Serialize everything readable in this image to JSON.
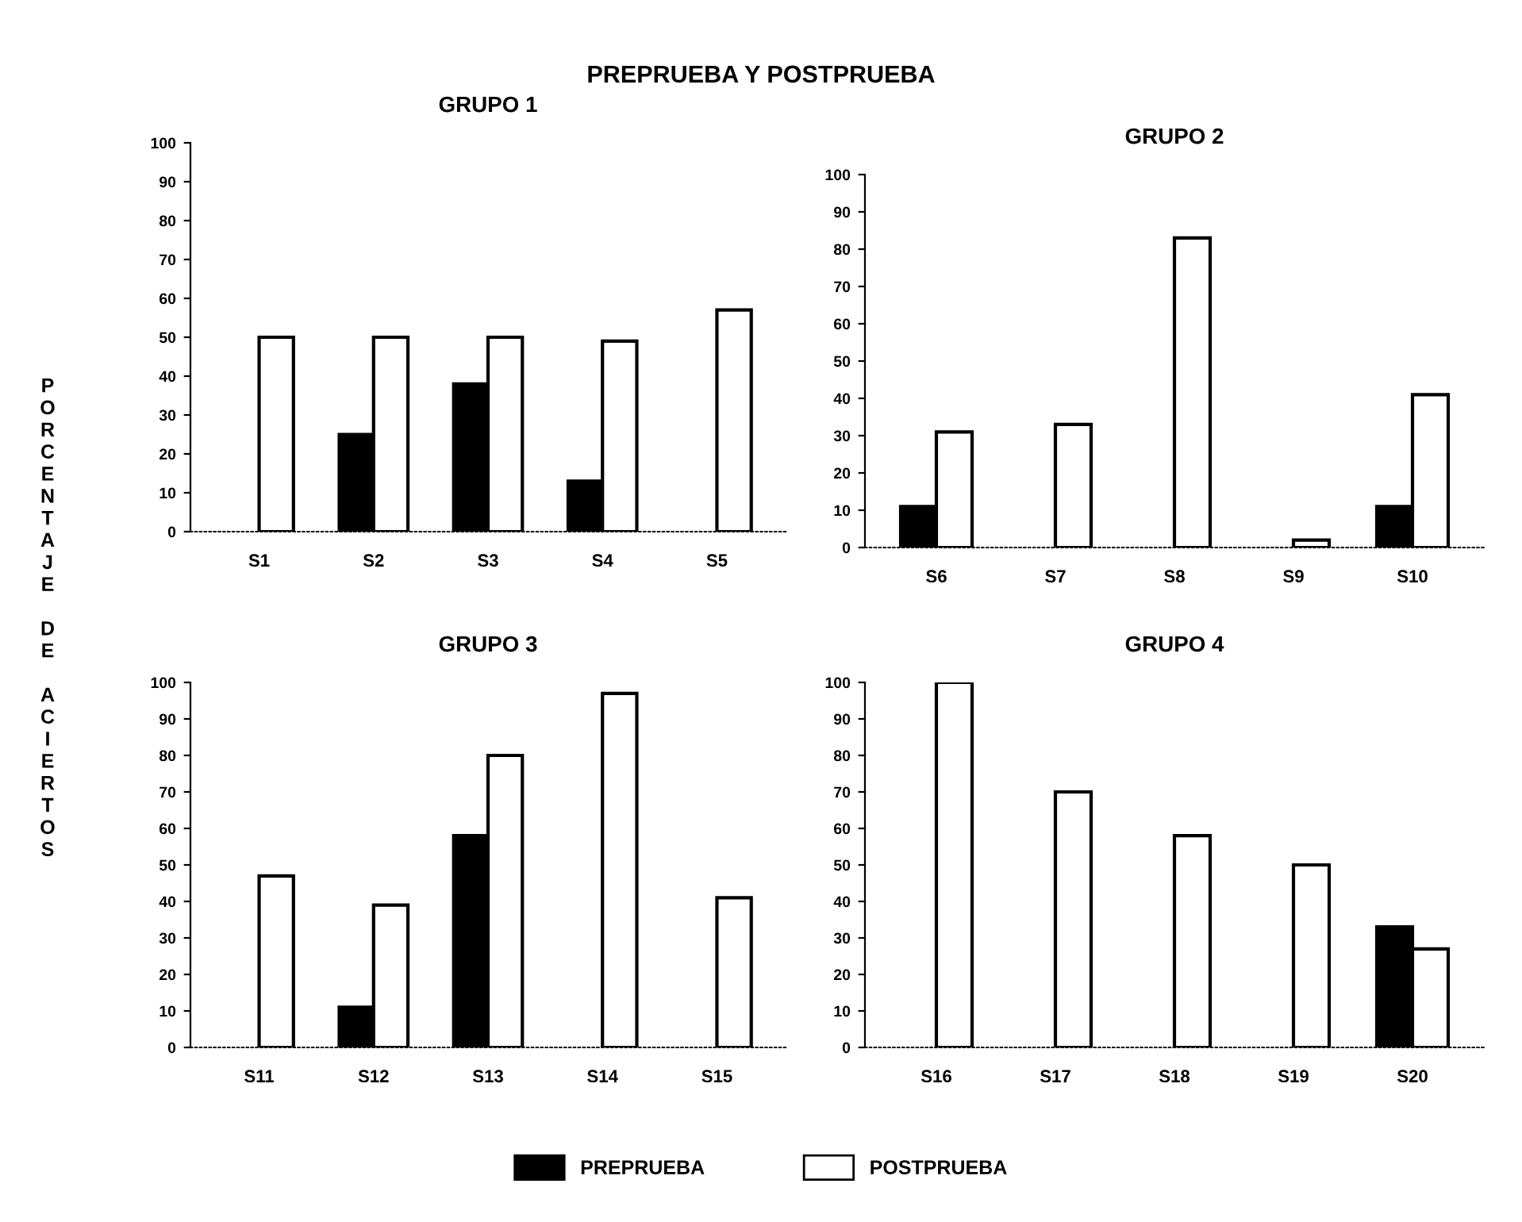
{
  "chart_data": [
    {
      "type": "bar",
      "title": "GRUPO 1",
      "annotations": [
        "PREPRUEBA Y POSTPRUEBA"
      ],
      "ylabel": "PORCENTAJE DE ACIERTOS",
      "categories": [
        "S1",
        "S2",
        "S3",
        "S4",
        "S5"
      ],
      "ylim": [
        0,
        100
      ],
      "yticks": [
        0,
        10,
        20,
        30,
        40,
        50,
        60,
        70,
        80,
        90,
        100
      ],
      "grid": false,
      "legend": "bottom",
      "series": [
        {
          "name": "PREPRUEBA",
          "color": "#000000",
          "values": [
            0,
            25,
            38,
            13,
            0
          ]
        },
        {
          "name": "POSTPRUEBA",
          "color": "#ffffff",
          "values": [
            50,
            50,
            50,
            49,
            57
          ]
        }
      ]
    },
    {
      "type": "bar",
      "title": "GRUPO 2",
      "categories": [
        "S6",
        "S7",
        "S8",
        "S9",
        "S10"
      ],
      "ylim": [
        0,
        100
      ],
      "yticks": [
        0,
        10,
        20,
        30,
        40,
        50,
        60,
        70,
        80,
        90,
        100
      ],
      "grid": false,
      "series": [
        {
          "color": "#000000",
          "values": [
            11,
            0,
            0,
            0,
            11
          ]
        },
        {
          "color": "#ffffff",
          "values": [
            31,
            33,
            83,
            2,
            41
          ]
        }
      ]
    },
    {
      "type": "bar",
      "title": "GRUPO 3",
      "categories": [
        "S11",
        "S12",
        "S13",
        "S14",
        "S15"
      ],
      "ylim": [
        0,
        100
      ],
      "yticks": [
        0,
        10,
        20,
        30,
        40,
        50,
        60,
        70,
        80,
        90,
        100
      ],
      "grid": false,
      "series": [
        {
          "color": "#000000",
          "values": [
            0,
            11,
            58,
            0,
            0
          ]
        },
        {
          "color": "#ffffff",
          "values": [
            47,
            39,
            80,
            97,
            41
          ]
        }
      ]
    },
    {
      "type": "bar",
      "title": "GRUPO 4",
      "categories": [
        "S16",
        "S17",
        "S18",
        "S19",
        "S20"
      ],
      "ylim": [
        0,
        100
      ],
      "yticks": [
        0,
        10,
        20,
        30,
        40,
        50,
        60,
        70,
        80,
        90,
        100
      ],
      "grid": false,
      "series": [
        {
          "color": "#000000",
          "values": [
            0,
            0,
            0,
            0,
            33
          ]
        },
        {
          "color": "#ffffff",
          "values": [
            100,
            70,
            58,
            50,
            27
          ]
        }
      ]
    }
  ]
}
